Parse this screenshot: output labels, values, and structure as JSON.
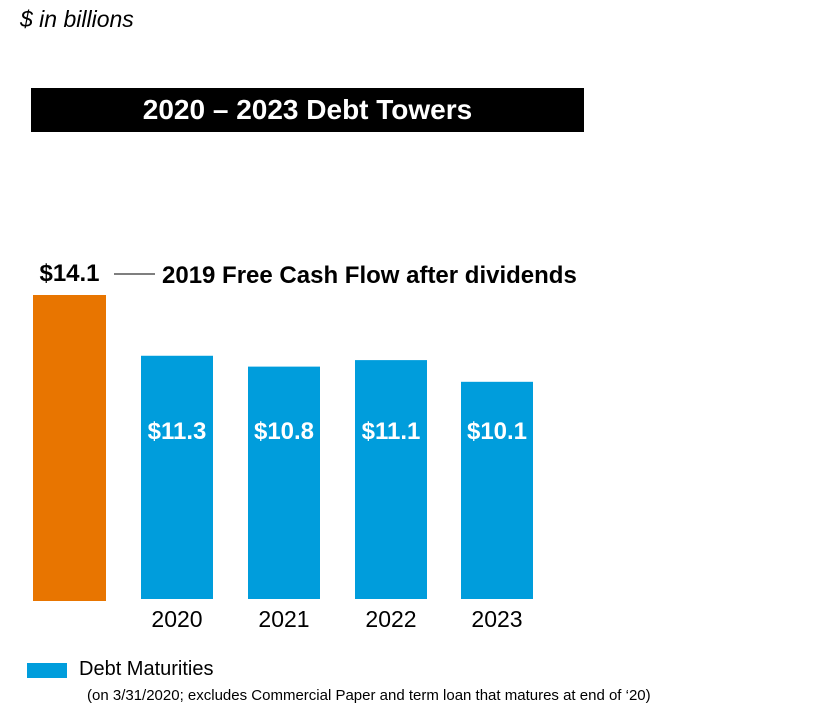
{
  "units_label": "$ in billions",
  "title": "2020 – 2023 Debt Towers",
  "chart_data": {
    "type": "bar",
    "title": "2020 – 2023 Debt Towers",
    "xlabel": "",
    "ylabel": "",
    "ylim": [
      0,
      14.1
    ],
    "grid": false,
    "legend_position": "bottom-left",
    "reference_bar": {
      "value": 14.1,
      "value_label": "$14.1",
      "annotation": "2019 Free Cash Flow after dividends",
      "color": "#e87500"
    },
    "categories": [
      "2020",
      "2021",
      "2022",
      "2023"
    ],
    "series": [
      {
        "name": "Debt Maturities",
        "color": "#009ddc",
        "values": [
          11.3,
          10.8,
          11.1,
          10.1
        ],
        "value_labels": [
          "$11.3",
          "$10.8",
          "$11.1",
          "$10.1"
        ]
      }
    ]
  },
  "legend": {
    "label": "Debt Maturities",
    "note": "(on 3/31/2020; excludes Commercial Paper and term loan that matures at end of ‘20)"
  }
}
